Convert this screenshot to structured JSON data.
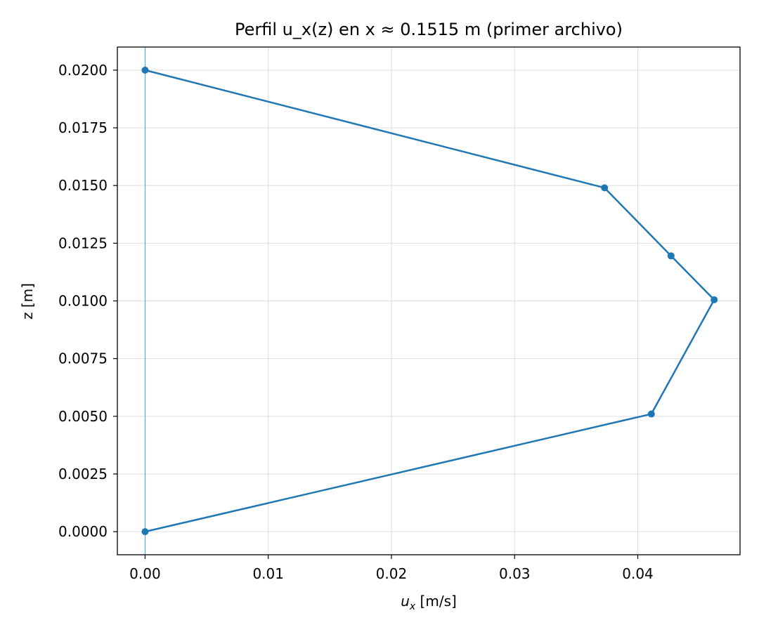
{
  "chart_data": {
    "type": "line",
    "title": "Perfil u_x(z) en x ≈ 0.1515 m (primer archivo)",
    "xlabel_base": "u",
    "xlabel_sub": "x",
    "xlabel_rest": " [m/s]",
    "ylabel": "z [m]",
    "xlim": [
      -0.00225,
      0.0483
    ],
    "ylim": [
      -0.001,
      0.021
    ],
    "x_ticks": [
      0.0,
      0.01,
      0.02,
      0.03,
      0.04
    ],
    "x_tick_labels": [
      "0.00",
      "0.01",
      "0.02",
      "0.03",
      "0.04"
    ],
    "y_ticks": [
      0.0,
      0.0025,
      0.005,
      0.0075,
      0.01,
      0.0125,
      0.015,
      0.0175,
      0.02
    ],
    "y_tick_labels": [
      "0.0000",
      "0.0025",
      "0.0050",
      "0.0075",
      "0.0100",
      "0.0125",
      "0.0150",
      "0.0175",
      "0.0200"
    ],
    "grid": true,
    "reference_line_x": 0.0,
    "series": [
      {
        "x": [
          0.0,
          0.0411,
          0.0462,
          0.0427,
          0.0373,
          0.0
        ],
        "y": [
          0.0,
          0.0051,
          0.01005,
          0.01195,
          0.0149,
          0.02
        ],
        "color": "#1f77b4",
        "marker": "circle"
      }
    ],
    "colors": {
      "line": "#1f77b4",
      "grid": "#dddddd",
      "axes": "#000000"
    }
  }
}
